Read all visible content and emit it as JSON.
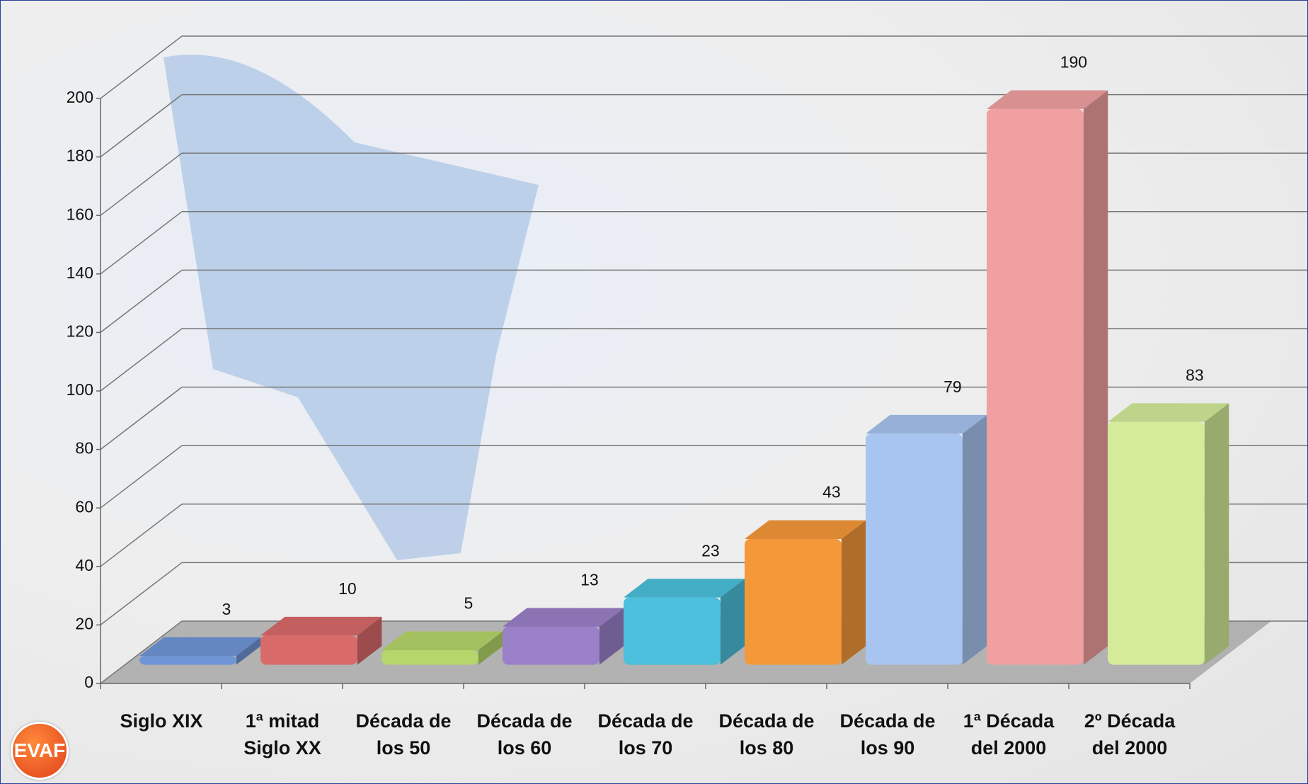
{
  "logo": "EVAF",
  "chart_data": {
    "type": "bar3d",
    "categories": [
      "Siglo XIX",
      "1ª mitad Siglo XX",
      "Década de los 50",
      "Década de los 60",
      "Década de los 70",
      "Década de los 80",
      "Década de los 90",
      "1ª Década del 2000",
      "2º Década del 2000"
    ],
    "values": [
      3,
      10,
      5,
      13,
      23,
      43,
      79,
      190,
      83
    ],
    "colors": [
      "#6f95d6",
      "#d96a6a",
      "#b5d66a",
      "#9a80c8",
      "#4cc0dc",
      "#f5983a",
      "#a8c4f0",
      "#f0a0a0",
      "#d4ec9a"
    ],
    "ylim": [
      0,
      200
    ],
    "yticks": [
      0,
      20,
      40,
      60,
      80,
      100,
      120,
      140,
      160,
      180,
      200
    ],
    "grid": true
  }
}
